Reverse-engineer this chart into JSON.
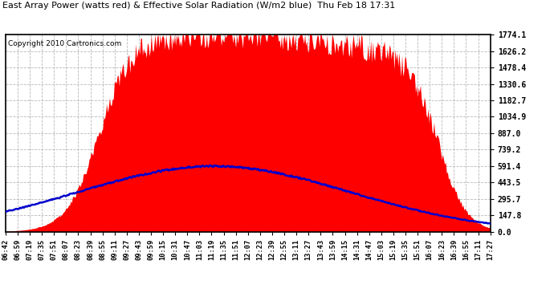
{
  "title": "East Array Power (watts red) & Effective Solar Radiation (W/m2 blue)  Thu Feb 18 17:31",
  "copyright": "Copyright 2010 Cartronics.com",
  "background_color": "#ffffff",
  "plot_bg_color": "#ffffff",
  "grid_color": "#b0b0b0",
  "red_fill_color": "#ff0000",
  "blue_line_color": "#0000cc",
  "y_max": 1774.1,
  "y_min": 0.0,
  "y_ticks": [
    0.0,
    147.8,
    295.7,
    443.5,
    591.4,
    739.2,
    887.0,
    1034.9,
    1182.7,
    1330.6,
    1478.4,
    1626.2,
    1774.1
  ],
  "x_labels": [
    "06:42",
    "06:59",
    "07:19",
    "07:35",
    "07:51",
    "08:07",
    "08:23",
    "08:39",
    "08:55",
    "09:11",
    "09:27",
    "09:43",
    "09:59",
    "10:15",
    "10:31",
    "10:47",
    "11:03",
    "11:19",
    "11:35",
    "11:51",
    "12:07",
    "12:23",
    "12:39",
    "12:55",
    "13:11",
    "13:27",
    "13:43",
    "13:59",
    "14:15",
    "14:31",
    "14:47",
    "15:03",
    "15:19",
    "15:35",
    "15:51",
    "16:07",
    "16:23",
    "16:39",
    "16:55",
    "17:11",
    "17:27"
  ],
  "n_points": 500
}
